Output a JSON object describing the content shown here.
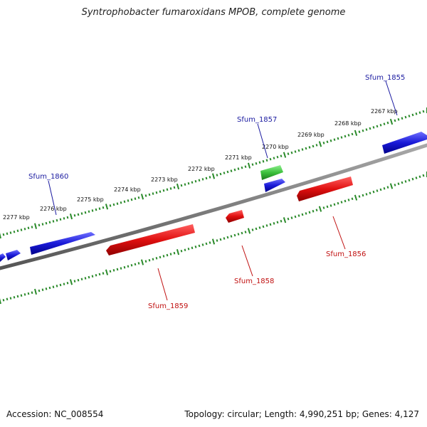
{
  "title": "Syntrophobacter fumaroxidans MPOB, complete genome",
  "footer": {
    "accession": "Accession: NC_008554",
    "summary": "Topology: circular; Length: 4,990,251 bp; Genes: 4,127"
  },
  "colors": {
    "backbone": "#808080",
    "tick": "#2a8a2a",
    "forward_gene": "#1a1ad8",
    "reverse_gene": "#e01010",
    "rna_gene": "#3cc03c",
    "forward_label": "#1a1aa0",
    "reverse_label": "#c01010"
  },
  "kbp_labels": [
    "2277 kbp",
    "2276 kbp",
    "2275 kbp",
    "2274 kbp",
    "2273 kbp",
    "2272 kbp",
    "2271 kbp",
    "2270 kbp",
    "2269 kbp",
    "2268 kbp",
    "2267 kbp"
  ],
  "gene_labels": {
    "sfum_1855": "Sfum_1855",
    "sfum_1856": "Sfum_1856",
    "sfum_1857": "Sfum_1857",
    "sfum_1858": "Sfum_1858",
    "sfum_1859": "Sfum_1859",
    "sfum_1860": "Sfum_1860"
  }
}
